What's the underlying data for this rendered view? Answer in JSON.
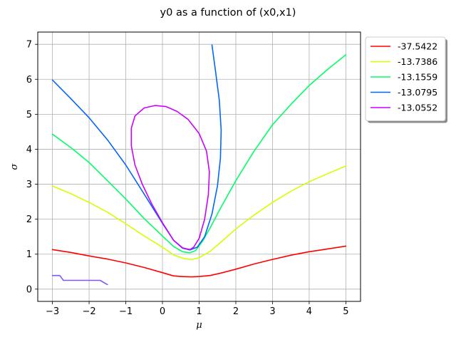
{
  "chart_data": {
    "type": "line",
    "title": "y0 as a function of (x0,x1)",
    "xlabel": "μ",
    "ylabel": "σ",
    "xlim": [
      -3.4,
      5.4
    ],
    "ylim": [
      -0.35,
      7.35
    ],
    "xticks": [
      -3,
      -2,
      -1,
      0,
      1,
      2,
      3,
      4,
      5
    ],
    "yticks": [
      0,
      1,
      2,
      3,
      4,
      5,
      6,
      7
    ],
    "grid": true,
    "legend_position": "outside-top-right",
    "series": [
      {
        "name": "-37.5422",
        "color": "#ff0000",
        "x": [
          -3.0,
          -2.5,
          -2.0,
          -1.5,
          -1.0,
          -0.5,
          0.0,
          0.3,
          0.5,
          0.8,
          1.0,
          1.3,
          1.6,
          2.0,
          2.5,
          3.0,
          3.5,
          4.0,
          4.5,
          5.0
        ],
        "y": [
          1.13,
          1.05,
          0.95,
          0.86,
          0.75,
          0.62,
          0.47,
          0.38,
          0.36,
          0.35,
          0.36,
          0.39,
          0.46,
          0.57,
          0.72,
          0.85,
          0.97,
          1.07,
          1.15,
          1.23
        ]
      },
      {
        "name": "-13.7386",
        "color": "#d4ff00",
        "x": [
          -3.0,
          -2.5,
          -2.0,
          -1.5,
          -1.0,
          -0.5,
          0.0,
          0.3,
          0.6,
          0.8,
          1.0,
          1.3,
          1.6,
          2.0,
          2.5,
          3.0,
          3.5,
          4.0,
          4.5,
          5.0
        ],
        "y": [
          2.95,
          2.73,
          2.48,
          2.2,
          1.87,
          1.52,
          1.2,
          0.98,
          0.87,
          0.85,
          0.9,
          1.08,
          1.35,
          1.72,
          2.12,
          2.48,
          2.8,
          3.07,
          3.3,
          3.52
        ]
      },
      {
        "name": "-13.1559",
        "color": "#00ff66",
        "x": [
          -3.0,
          -2.5,
          -2.0,
          -1.5,
          -1.0,
          -0.5,
          0.0,
          0.3,
          0.55,
          0.75,
          0.9,
          1.1,
          1.3,
          1.6,
          2.0,
          2.5,
          3.0,
          3.5,
          4.0,
          4.5,
          5.0
        ],
        "y": [
          4.43,
          4.05,
          3.62,
          3.1,
          2.58,
          2.02,
          1.52,
          1.22,
          1.07,
          1.04,
          1.1,
          1.38,
          1.75,
          2.35,
          3.1,
          3.95,
          4.7,
          5.28,
          5.82,
          6.28,
          6.7
        ]
      },
      {
        "name": "-13.0795",
        "color": "#0066ff",
        "x": [
          -3.0,
          -2.5,
          -2.0,
          -1.5,
          -1.0,
          -0.5,
          0.0,
          0.3,
          0.55,
          0.75,
          0.95,
          1.15,
          1.35,
          1.5,
          1.58,
          1.6,
          1.55,
          1.45,
          1.35
        ],
        "y": [
          5.98,
          5.45,
          4.9,
          4.27,
          3.55,
          2.72,
          1.88,
          1.4,
          1.17,
          1.12,
          1.2,
          1.5,
          2.15,
          2.95,
          3.75,
          4.55,
          5.4,
          6.2,
          6.98
        ]
      },
      {
        "name": "-13.0552",
        "color": "#cc00ff",
        "x": [
          0.85,
          1.0,
          1.15,
          1.25,
          1.28,
          1.2,
          1.0,
          0.7,
          0.4,
          0.1,
          -0.2,
          -0.5,
          -0.75,
          -0.85,
          -0.85,
          -0.75,
          -0.55,
          -0.3,
          0.0,
          0.3,
          0.55,
          0.75,
          0.85
        ],
        "y": [
          1.2,
          1.45,
          2.0,
          2.7,
          3.35,
          3.95,
          4.45,
          4.85,
          5.08,
          5.22,
          5.25,
          5.18,
          4.95,
          4.6,
          4.1,
          3.55,
          3.0,
          2.45,
          1.9,
          1.4,
          1.18,
          1.13,
          1.2
        ]
      },
      {
        "name": "",
        "color": "#7f55ff",
        "legend": false,
        "x": [
          -3.0,
          -2.8,
          -2.7,
          -2.4,
          -2.0,
          -1.7,
          -1.5
        ],
        "y": [
          0.39,
          0.39,
          0.25,
          0.25,
          0.25,
          0.25,
          0.13
        ]
      }
    ]
  }
}
